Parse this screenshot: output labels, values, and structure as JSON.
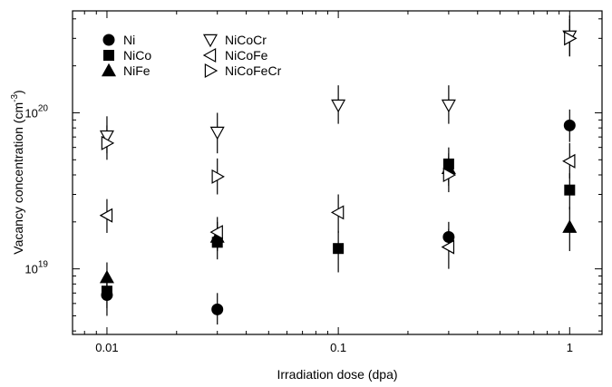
{
  "chart_data": {
    "type": "scatter",
    "title": "",
    "xlabel": "Irradiation dose (dpa)",
    "ylabel": "Vacancy concentration (cm",
    "ylabel_exponent": "-3",
    "ylabel_close": ")",
    "x_scale": "log",
    "y_scale": "log",
    "xlim": [
      0.0071,
      1.38
    ],
    "ylim": [
      3.8e+18,
      4.5e+20
    ],
    "x_ticks": [
      {
        "value": 0.01,
        "label": "0.01"
      },
      {
        "value": 0.1,
        "label": "0.1"
      },
      {
        "value": 1,
        "label": "1"
      }
    ],
    "y_ticks": [
      {
        "value": 1e+19,
        "base": "10",
        "exp": "19"
      },
      {
        "value": 1e+20,
        "base": "10",
        "exp": "20"
      }
    ],
    "grid": false,
    "legend_position": "top-left",
    "series": [
      {
        "name": "Ni",
        "marker": "circle-filled",
        "points": [
          {
            "x": 0.01,
            "y": 6.8e+18,
            "err": [
              5.6e+18,
              8.3e+18
            ]
          },
          {
            "x": 0.03,
            "y": 5.5e+18,
            "err": [
              4.4e+18,
              7e+18
            ]
          },
          {
            "x": 0.3,
            "y": 1.6e+19,
            "err": [
              1.3e+19,
              2e+19
            ]
          },
          {
            "x": 1,
            "y": 8.3e+19,
            "err": [
              6.5e+19,
              1.05e+20
            ]
          }
        ]
      },
      {
        "name": "NiCo",
        "marker": "square-filled",
        "points": [
          {
            "x": 0.01,
            "y": 7.2e+18,
            "err": [
              5e+18,
              8.8e+18
            ]
          },
          {
            "x": 0.03,
            "y": 1.48e+19,
            "err": [
              1.15e+19,
              1.85e+19
            ]
          },
          {
            "x": 0.1,
            "y": 1.35e+19,
            "err": [
              9.5e+18,
              1.75e+19
            ]
          },
          {
            "x": 0.3,
            "y": 4.7e+19,
            "err": [
              3.6e+19,
              6e+19
            ]
          },
          {
            "x": 1,
            "y": 3.2e+19,
            "err": [
              2.4e+19,
              4.1e+19
            ]
          }
        ]
      },
      {
        "name": "NiFe",
        "marker": "triangle-up-filled",
        "points": [
          {
            "x": 0.01,
            "y": 8.8e+18,
            "err": [
              7.2e+18,
              1.1e+19
            ]
          },
          {
            "x": 0.03,
            "y": 1.6e+19,
            "err": [
              1.3e+19,
              2e+19
            ]
          },
          {
            "x": 0.3,
            "y": 4.4e+19,
            "err": [
              3.4e+19,
              5.5e+19
            ]
          },
          {
            "x": 1,
            "y": 1.85e+19,
            "err": [
              1.3e+19,
              2.5e+19
            ]
          }
        ]
      },
      {
        "name": "NiCoCr",
        "marker": "triangle-down-open",
        "points": [
          {
            "x": 0.01,
            "y": 7.1e+19,
            "err": [
              5.5e+19,
              9.5e+19
            ]
          },
          {
            "x": 0.03,
            "y": 7.5e+19,
            "err": [
              5.5e+19,
              1e+20
            ]
          },
          {
            "x": 0.1,
            "y": 1.12e+20,
            "err": [
              8.5e+19,
              1.5e+20
            ]
          },
          {
            "x": 0.3,
            "y": 1.12e+20,
            "err": [
              8.5e+19,
              1.5e+20
            ]
          },
          {
            "x": 1,
            "y": 3.1e+20,
            "err": [
              2.3e+20,
              4.2e+20
            ]
          }
        ]
      },
      {
        "name": "NiCoFe",
        "marker": "triangle-left-open",
        "points": [
          {
            "x": 0.01,
            "y": 2.2e+19,
            "err": [
              1.7e+19,
              2.8e+19
            ]
          },
          {
            "x": 0.03,
            "y": 1.72e+19,
            "err": [
              1.35e+19,
              2.15e+19
            ]
          },
          {
            "x": 0.1,
            "y": 2.3e+19,
            "err": [
              1.7e+19,
              3e+19
            ]
          },
          {
            "x": 0.3,
            "y": 1.38e+19,
            "err": [
              1e+19,
              1.8e+19
            ]
          },
          {
            "x": 1,
            "y": 4.9e+19,
            "err": [
              3.8e+19,
              6.4e+19
            ]
          }
        ]
      },
      {
        "name": "NiCoFeCr",
        "marker": "triangle-right-open",
        "points": [
          {
            "x": 0.01,
            "y": 6.4e+19,
            "err": [
              5e+19,
              8.3e+19
            ]
          },
          {
            "x": 0.03,
            "y": 3.9e+19,
            "err": [
              3e+19,
              5.1e+19
            ]
          },
          {
            "x": 0.3,
            "y": 4e+19,
            "err": [
              3.1e+19,
              5.2e+19
            ]
          },
          {
            "x": 1,
            "y": 3e+20,
            "err": [
              2.3e+20,
              4e+20
            ]
          }
        ]
      }
    ]
  }
}
